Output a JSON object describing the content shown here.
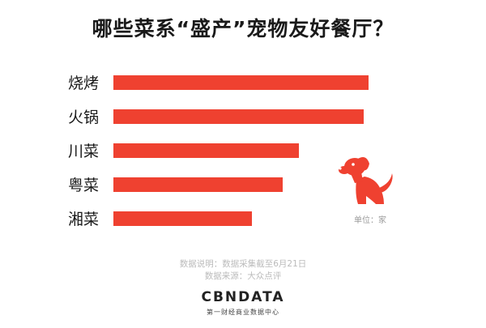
{
  "chart_data": {
    "type": "bar",
    "orientation": "horizontal",
    "title": "哪些菜系“盛产”宠物友好餐厅？",
    "categories": [
      "烧烤",
      "火锅",
      "川菜",
      "粤菜",
      "湘菜"
    ],
    "values": [
      315,
      309,
      229,
      209,
      171
    ],
    "xlim": [
      0,
      315
    ],
    "unit_label": "单位：家",
    "bar_color": "#ef4130",
    "grid": false,
    "legend": "none"
  },
  "notes": {
    "line1": "数据说明：数据采集截至6月21日",
    "line2": "数据来源：大众点评"
  },
  "brand": {
    "name": "CBNDATA",
    "tagline": "第一财经商业数据中心"
  },
  "icons": {
    "mascot": "dog-icon"
  }
}
